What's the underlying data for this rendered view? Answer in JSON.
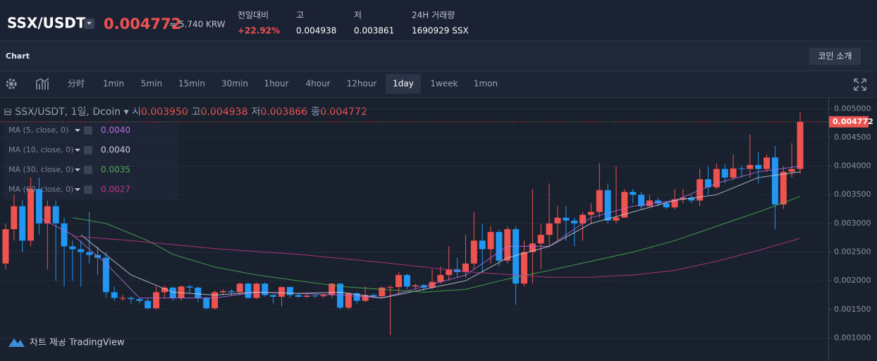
{
  "header": {
    "pair": "SSX/USDT",
    "price": "0.004772",
    "krw": "≈ 5.740 KRW",
    "stats": [
      {
        "label": "전일대비",
        "value": "+22.92%"
      },
      {
        "label": "고",
        "value": "0.004938"
      },
      {
        "label": "저",
        "value": "0.003861"
      },
      {
        "label": "24H 거래량",
        "value": "1690929 SSX"
      }
    ]
  },
  "toolbar": {
    "title": "Chart",
    "button": "코인 소개",
    "intervals": [
      "分时",
      "1min",
      "5min",
      "15min",
      "30min",
      "1hour",
      "4hour",
      "12hour",
      "1day",
      "1week",
      "1mon"
    ],
    "active": "1day"
  },
  "footer": "차트 제공 TradingView",
  "chart_data": {
    "type": "candlestick",
    "legend": {
      "title": "SSX/USDT, 1일, Dcoin",
      "ohlc": [
        {
          "label": "시",
          "value": "0.003950"
        },
        {
          "label": "고",
          "value": "0.004938"
        },
        {
          "label": "저",
          "value": "0.003866"
        },
        {
          "label": "종",
          "value": "0.004772"
        }
      ]
    },
    "up_color": "#ef5350",
    "down_color": "#2196f3",
    "open": [
      0.0023,
      0.0029,
      0.0033,
      0.0027,
      0.0036,
      0.003,
      0.0033,
      0.003,
      0.0026,
      0.00255,
      0.0025,
      0.00245,
      0.0024,
      0.0018,
      0.0017,
      0.0017,
      0.00168,
      0.00165,
      0.00152,
      0.0018,
      0.00188,
      0.0017,
      0.0019,
      0.00188,
      0.0017,
      0.00152,
      0.0018,
      0.00182,
      0.0018,
      0.00195,
      0.0017,
      0.00195,
      0.00175,
      0.00172,
      0.00189,
      0.00175,
      0.00172,
      0.00174,
      0.00173,
      0.00175,
      0.00195,
      0.00153,
      0.00178,
      0.00165,
      0.00175,
      0.00173,
      0.00188,
      0.00189,
      0.0021,
      0.0019,
      0.00192,
      0.00188,
      0.00198,
      0.0021,
      0.0022,
      0.00215,
      0.0023,
      0.0027,
      0.00255,
      0.00285,
      0.00235,
      0.0029,
      0.00195,
      0.0025,
      0.00265,
      0.0028,
      0.003,
      0.0031,
      0.00305,
      0.003,
      0.00315,
      0.0032,
      0.00358,
      0.00305,
      0.0031,
      0.00355,
      0.0035,
      0.0033,
      0.0034,
      0.00335,
      0.00328,
      0.00342,
      0.00345,
      0.0034,
      0.00377,
      0.00363,
      0.00395,
      0.0038,
      0.00396,
      0.00395,
      0.00402,
      0.00395,
      0.00415,
      0.00333,
      0.0039,
      0.00395
    ],
    "high": [
      0.003,
      0.0035,
      0.0034,
      0.0038,
      0.0038,
      0.0034,
      0.0034,
      0.0031,
      0.0027,
      0.0027,
      0.0032,
      0.0026,
      0.0025,
      0.0019,
      0.00175,
      0.00173,
      0.0017,
      0.0017,
      0.0019,
      0.00192,
      0.0019,
      0.00192,
      0.00193,
      0.0019,
      0.00172,
      0.00183,
      0.00185,
      0.00185,
      0.00197,
      0.00197,
      0.00197,
      0.00197,
      0.00177,
      0.0019,
      0.0019,
      0.00177,
      0.00176,
      0.00176,
      0.00177,
      0.00196,
      0.00196,
      0.0018,
      0.0018,
      0.0019,
      0.00178,
      0.0019,
      0.00192,
      0.00215,
      0.00212,
      0.00195,
      0.00195,
      0.0022,
      0.00225,
      0.0026,
      0.0024,
      0.0028,
      0.0032,
      0.003,
      0.00295,
      0.0029,
      0.00295,
      0.00295,
      0.0027,
      0.0036,
      0.003,
      0.0037,
      0.0033,
      0.0033,
      0.0031,
      0.0032,
      0.00335,
      0.00405,
      0.0037,
      0.004,
      0.0036,
      0.0036,
      0.00355,
      0.0035,
      0.00345,
      0.00338,
      0.0036,
      0.0036,
      0.0035,
      0.00395,
      0.004,
      0.00405,
      0.00403,
      0.0042,
      0.004,
      0.00455,
      0.00425,
      0.0042,
      0.00435,
      0.004,
      0.0044,
      0.004938
    ],
    "low": [
      0.0022,
      0.0027,
      0.0025,
      0.0026,
      0.0028,
      0.0022,
      0.002,
      0.0019,
      0.002,
      0.0019,
      0.0023,
      0.0021,
      0.0017,
      0.00165,
      0.00165,
      0.0016,
      0.0016,
      0.0015,
      0.0015,
      0.0017,
      0.00165,
      0.00165,
      0.00178,
      0.00162,
      0.0015,
      0.0015,
      0.00175,
      0.00175,
      0.00175,
      0.00168,
      0.00168,
      0.00172,
      0.0016,
      0.00155,
      0.0017,
      0.0017,
      0.0017,
      0.0017,
      0.0017,
      0.0017,
      0.0015,
      0.0015,
      0.0016,
      0.00163,
      0.0017,
      0.0017,
      0.00105,
      0.00175,
      0.00185,
      0.00185,
      0.00182,
      0.00185,
      0.00195,
      0.002,
      0.00205,
      0.00205,
      0.0022,
      0.00215,
      0.0023,
      0.00225,
      0.0023,
      0.00158,
      0.0019,
      0.00195,
      0.0022,
      0.0026,
      0.0027,
      0.0027,
      0.0026,
      0.0027,
      0.003,
      0.0031,
      0.003,
      0.003,
      0.0031,
      0.00335,
      0.00325,
      0.0033,
      0.0033,
      0.00325,
      0.00325,
      0.00335,
      0.00335,
      0.0033,
      0.0035,
      0.0036,
      0.0037,
      0.00375,
      0.0038,
      0.0038,
      0.0037,
      0.0039,
      0.0029,
      0.00325,
      0.0038,
      0.003866
    ],
    "close": [
      0.0029,
      0.0033,
      0.0027,
      0.0036,
      0.003,
      0.0033,
      0.003,
      0.0026,
      0.00255,
      0.0025,
      0.00245,
      0.0024,
      0.0018,
      0.0017,
      0.0017,
      0.00168,
      0.00165,
      0.00152,
      0.0018,
      0.00188,
      0.0017,
      0.0019,
      0.00188,
      0.0017,
      0.00152,
      0.0018,
      0.00182,
      0.0018,
      0.00195,
      0.0017,
      0.00195,
      0.00175,
      0.00172,
      0.00189,
      0.00175,
      0.00172,
      0.00174,
      0.00173,
      0.00175,
      0.00195,
      0.00153,
      0.00178,
      0.00165,
      0.00175,
      0.00173,
      0.00188,
      0.00189,
      0.0021,
      0.0019,
      0.00192,
      0.00188,
      0.00198,
      0.0021,
      0.0022,
      0.00215,
      0.0023,
      0.0027,
      0.00255,
      0.00285,
      0.00235,
      0.0029,
      0.00195,
      0.0025,
      0.00265,
      0.0028,
      0.003,
      0.0031,
      0.00305,
      0.003,
      0.00315,
      0.0032,
      0.00358,
      0.00305,
      0.0031,
      0.00355,
      0.0035,
      0.0033,
      0.0034,
      0.00335,
      0.00328,
      0.00342,
      0.00345,
      0.0034,
      0.00377,
      0.00363,
      0.00395,
      0.0038,
      0.00396,
      0.00395,
      0.00402,
      0.00395,
      0.00415,
      0.00333,
      0.0039,
      0.00395,
      0.004772
    ],
    "series": [
      {
        "name": "MA (5, close, 0)",
        "label": "0.0040",
        "color": "#b36ae2",
        "x": [
          4,
          8,
          12,
          16,
          20,
          25,
          30,
          35,
          40,
          45,
          50,
          55,
          60,
          65,
          70,
          75,
          80,
          85,
          90,
          95
        ],
        "values": [
          0.0031,
          0.0028,
          0.0023,
          0.0017,
          0.0017,
          0.0017,
          0.0018,
          0.00178,
          0.00175,
          0.0017,
          0.0019,
          0.0021,
          0.0026,
          0.0026,
          0.0031,
          0.0033,
          0.0034,
          0.0037,
          0.0039,
          0.004
        ]
      },
      {
        "name": "MA (10, close, 0)",
        "label": "0.0040",
        "color": "#c9cfdc",
        "x": [
          9,
          15,
          20,
          25,
          30,
          35,
          40,
          45,
          50,
          55,
          60,
          65,
          70,
          75,
          80,
          85,
          90,
          95
        ],
        "values": [
          0.0028,
          0.0021,
          0.0018,
          0.00175,
          0.0018,
          0.00178,
          0.0018,
          0.0017,
          0.00185,
          0.002,
          0.0024,
          0.0026,
          0.003,
          0.0032,
          0.0034,
          0.0035,
          0.0038,
          0.0039
        ]
      },
      {
        "name": "MA (30, close, 0)",
        "label": "0.0035",
        "color": "#4caf50",
        "x": [
          8,
          12,
          17,
          20,
          25,
          30,
          40,
          45,
          50,
          55,
          60,
          65,
          70,
          75,
          80,
          85,
          90,
          95
        ],
        "values": [
          0.0031,
          0.003,
          0.0027,
          0.00246,
          0.00224,
          0.0021,
          0.0019,
          0.00185,
          0.0018,
          0.00185,
          0.00203,
          0.00218,
          0.00234,
          0.0025,
          0.0027,
          0.00295,
          0.0032,
          0.00347
        ]
      },
      {
        "name": "MA (60, close, 0)",
        "label": "0.0027",
        "color": "#c2338a",
        "x": [
          8,
          15,
          25,
          35,
          45,
          55,
          65,
          70,
          75,
          80,
          85,
          90,
          95
        ],
        "values": [
          0.00278,
          0.0027,
          0.00256,
          0.00246,
          0.00232,
          0.00216,
          0.00206,
          0.00206,
          0.0021,
          0.00218,
          0.00234,
          0.00253,
          0.00274
        ]
      }
    ],
    "last_price": {
      "value": 0.004772,
      "label": "0.004772"
    },
    "ylim": [
      0.0006,
      0.0052
    ],
    "yticks": [
      {
        "value": 0.001,
        "label": "0.001000"
      },
      {
        "value": 0.0015,
        "label": "0.001500"
      },
      {
        "value": 0.002,
        "label": "0.002000"
      },
      {
        "value": 0.0025,
        "label": "0.002500"
      },
      {
        "value": 0.003,
        "label": "0.003000"
      },
      {
        "value": 0.0035,
        "label": "0.003500"
      },
      {
        "value": 0.004,
        "label": "0.004000"
      },
      {
        "value": 0.0045,
        "label": "0.004500"
      },
      {
        "value": 0.005,
        "label": "0.005000"
      }
    ],
    "grid": true
  }
}
